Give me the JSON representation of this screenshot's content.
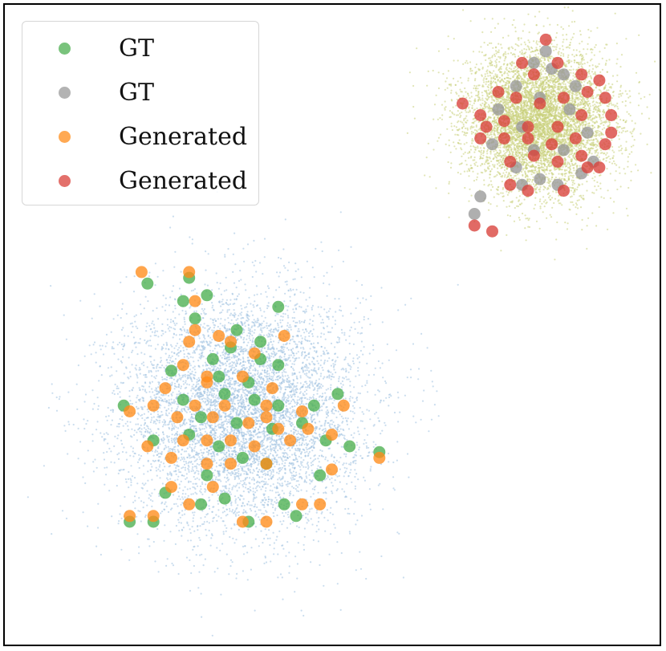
{
  "chart_data": {
    "type": "scatter",
    "title": "",
    "xlabel": "",
    "ylabel": "",
    "xlim": [
      -4,
      7
    ],
    "ylim": [
      -4,
      7
    ],
    "grid": false,
    "axes_ticks": false,
    "legend_placement": "top-left",
    "background": [
      {
        "center": [
          0,
          0
        ],
        "std": 1.0,
        "count": 7000,
        "color": "#9ec1e0"
      },
      {
        "center": [
          5,
          5
        ],
        "std": 0.6,
        "count": 7000,
        "color": "#c9cf7a"
      }
    ],
    "series": [
      {
        "name": "GT",
        "color": "#4caf50",
        "points": [
          [
            -1.6,
            2.2
          ],
          [
            -0.9,
            2.3
          ],
          [
            -0.6,
            2.0
          ],
          [
            -0.8,
            1.6
          ],
          [
            -0.1,
            1.4
          ],
          [
            -0.2,
            1.1
          ],
          [
            0.3,
            0.9
          ],
          [
            0.6,
            0.8
          ],
          [
            -0.4,
            0.6
          ],
          [
            0.1,
            0.5
          ],
          [
            -1.2,
            0.7
          ],
          [
            -0.3,
            0.3
          ],
          [
            0.2,
            0.2
          ],
          [
            0.6,
            0.1
          ],
          [
            1.2,
            0.1
          ],
          [
            1.6,
            0.3
          ],
          [
            -2.0,
            0.1
          ],
          [
            -0.7,
            -0.1
          ],
          [
            -0.1,
            -0.2
          ],
          [
            0.5,
            -0.3
          ],
          [
            1.0,
            -0.2
          ],
          [
            1.4,
            -0.5
          ],
          [
            -1.5,
            -0.5
          ],
          [
            -0.9,
            -0.4
          ],
          [
            -0.4,
            -0.6
          ],
          [
            0.0,
            -0.8
          ],
          [
            0.4,
            -0.9
          ],
          [
            1.3,
            -1.1
          ],
          [
            -1.3,
            -1.4
          ],
          [
            -0.3,
            -1.5
          ],
          [
            -0.7,
            -1.6
          ],
          [
            0.7,
            -1.6
          ],
          [
            -1.9,
            -1.9
          ],
          [
            -1.5,
            -1.9
          ],
          [
            0.1,
            -1.9
          ],
          [
            0.9,
            -1.8
          ],
          [
            -0.5,
            0.9
          ],
          [
            0.3,
            1.2
          ],
          [
            -1.0,
            0.2
          ],
          [
            1.8,
            -0.6
          ],
          [
            2.3,
            -0.7
          ],
          [
            -1.0,
            1.9
          ],
          [
            0.6,
            1.8
          ],
          [
            -0.6,
            -1.1
          ]
        ]
      },
      {
        "name": "GT",
        "color": "#999999",
        "points": [
          [
            5.1,
            6.2
          ],
          [
            4.6,
            5.6
          ],
          [
            5.2,
            5.9
          ],
          [
            5.6,
            5.6
          ],
          [
            4.3,
            5.2
          ],
          [
            4.7,
            4.9
          ],
          [
            5.0,
            5.4
          ],
          [
            5.5,
            5.2
          ],
          [
            5.8,
            4.8
          ],
          [
            4.2,
            4.6
          ],
          [
            4.9,
            4.5
          ],
          [
            5.4,
            4.5
          ],
          [
            5.9,
            4.3
          ],
          [
            4.6,
            4.2
          ],
          [
            5.3,
            3.9
          ],
          [
            5.0,
            4.0
          ],
          [
            4.0,
            3.7
          ],
          [
            3.9,
            3.4
          ],
          [
            5.4,
            5.8
          ],
          [
            4.7,
            3.9
          ],
          [
            4.9,
            6.0
          ],
          [
            5.7,
            4.1
          ]
        ]
      },
      {
        "name": "Generated",
        "color": "#ff8c1a",
        "points": [
          [
            -1.7,
            2.4
          ],
          [
            -0.9,
            2.4
          ],
          [
            -0.8,
            1.9
          ],
          [
            -0.8,
            1.4
          ],
          [
            -0.4,
            1.3
          ],
          [
            -0.2,
            1.2
          ],
          [
            0.2,
            1.0
          ],
          [
            -1.0,
            0.8
          ],
          [
            -0.6,
            0.5
          ],
          [
            0.0,
            0.6
          ],
          [
            0.5,
            0.4
          ],
          [
            -1.3,
            0.4
          ],
          [
            -1.5,
            0.1
          ],
          [
            -0.8,
            0.1
          ],
          [
            -0.3,
            0.1
          ],
          [
            0.4,
            0.1
          ],
          [
            1.0,
            0.0
          ],
          [
            1.7,
            0.1
          ],
          [
            -1.9,
            0.0
          ],
          [
            -1.1,
            -0.1
          ],
          [
            -0.5,
            -0.1
          ],
          [
            0.1,
            -0.2
          ],
          [
            0.6,
            -0.3
          ],
          [
            1.1,
            -0.3
          ],
          [
            1.5,
            -0.4
          ],
          [
            -1.6,
            -0.6
          ],
          [
            -1.0,
            -0.5
          ],
          [
            -0.6,
            -0.5
          ],
          [
            -0.2,
            -0.5
          ],
          [
            0.2,
            -0.6
          ],
          [
            0.8,
            -0.5
          ],
          [
            -1.2,
            -0.8
          ],
          [
            -0.6,
            -0.9
          ],
          [
            -0.2,
            -0.9
          ],
          [
            0.4,
            -0.9
          ],
          [
            1.5,
            -1.0
          ],
          [
            -1.2,
            -1.3
          ],
          [
            -0.9,
            -1.6
          ],
          [
            -0.5,
            -1.3
          ],
          [
            1.0,
            -1.6
          ],
          [
            -1.9,
            -1.8
          ],
          [
            -1.5,
            -1.8
          ],
          [
            0.0,
            -1.9
          ],
          [
            0.4,
            -1.9
          ],
          [
            1.3,
            -1.6
          ],
          [
            2.3,
            -0.8
          ],
          [
            -0.6,
            0.6
          ],
          [
            0.4,
            -0.1
          ],
          [
            -0.9,
            1.2
          ],
          [
            0.7,
            1.3
          ]
        ]
      },
      {
        "name": "Generated",
        "color": "#d9403a",
        "points": [
          [
            5.1,
            6.4
          ],
          [
            4.7,
            6.0
          ],
          [
            4.9,
            5.8
          ],
          [
            5.3,
            6.0
          ],
          [
            5.7,
            5.8
          ],
          [
            6.0,
            5.7
          ],
          [
            4.3,
            5.5
          ],
          [
            4.6,
            5.4
          ],
          [
            5.0,
            5.3
          ],
          [
            5.4,
            5.4
          ],
          [
            5.8,
            5.5
          ],
          [
            6.1,
            5.4
          ],
          [
            3.7,
            5.3
          ],
          [
            4.0,
            5.1
          ],
          [
            4.4,
            5.0
          ],
          [
            4.8,
            4.9
          ],
          [
            5.3,
            4.9
          ],
          [
            5.7,
            5.1
          ],
          [
            6.2,
            5.1
          ],
          [
            4.0,
            4.7
          ],
          [
            4.4,
            4.7
          ],
          [
            4.8,
            4.7
          ],
          [
            5.2,
            4.6
          ],
          [
            5.6,
            4.7
          ],
          [
            6.1,
            4.6
          ],
          [
            4.5,
            4.3
          ],
          [
            4.9,
            4.4
          ],
          [
            5.3,
            4.3
          ],
          [
            5.7,
            4.4
          ],
          [
            6.0,
            4.2
          ],
          [
            4.5,
            3.9
          ],
          [
            4.8,
            3.8
          ],
          [
            5.4,
            3.8
          ],
          [
            3.9,
            3.2
          ],
          [
            4.2,
            3.1
          ],
          [
            6.2,
            4.8
          ],
          [
            5.8,
            4.2
          ],
          [
            4.1,
            4.9
          ]
        ]
      }
    ]
  },
  "legend": {
    "items": [
      {
        "label": "GT",
        "color": "#4caf50"
      },
      {
        "label": "GT",
        "color": "#999999"
      },
      {
        "label": "Generated",
        "color": "#ff8c1a"
      },
      {
        "label": "Generated",
        "color": "#d9403a"
      }
    ]
  }
}
